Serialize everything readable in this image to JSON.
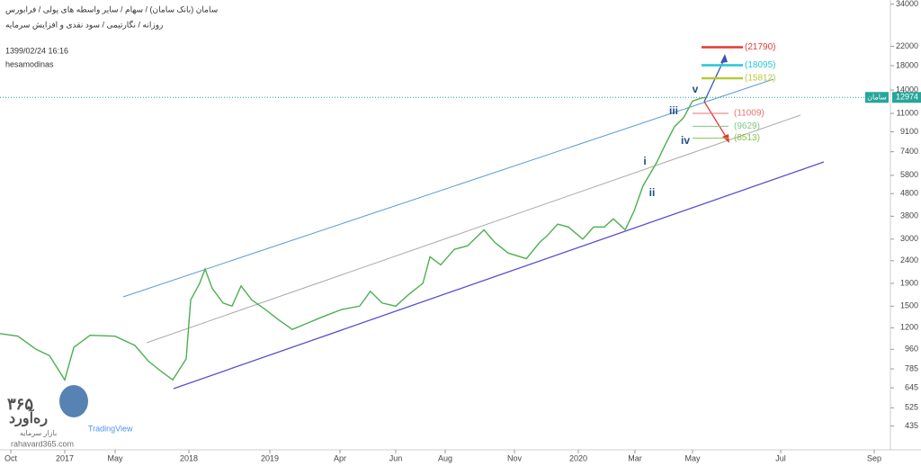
{
  "chart_data": {
    "type": "line",
    "title": "سامان (بانک سامان) / سهام / سایر واسطه های پولی / فرابورس",
    "subtitle": "روزانه / نگارتیمی / سود نقدی و افزایش سرمایه",
    "timestamp": "1399/02/24 16:16",
    "author": "hesamodinas",
    "watermark": {
      "digits": "۳۶۵",
      "brand": "ره‌آورد",
      "tagline": "بازار سرمایه",
      "site": "rahavard365.com",
      "platform": "TradingView"
    },
    "log_scale": true,
    "color": "#4caf50",
    "x": [
      2016.7,
      2016.783,
      2016.867,
      2016.929,
      2017.0,
      2017.06,
      2017.167,
      2017.333,
      2017.512,
      2017.634,
      2017.756,
      2017.854,
      2017.976,
      2018.022,
      2018.133,
      2018.2,
      2018.289,
      2018.422,
      2018.533,
      2018.644,
      2018.778,
      2018.944,
      2019.032,
      2019.08,
      2019.128,
      2019.192,
      2019.255,
      2019.309,
      2019.341,
      2019.376,
      2019.417,
      2019.462,
      2019.508,
      2019.532,
      2019.568,
      2019.616,
      2019.664,
      2019.723,
      2019.762,
      2019.81,
      2019.864,
      2019.899,
      2019.918,
      2019.946,
      2019.974,
      2020.013,
      2020.045,
      2020.077,
      2020.103,
      2020.138,
      2020.164,
      2020.19,
      2020.208,
      2020.229,
      2020.255,
      2020.281,
      2020.307,
      2020.333,
      2020.35,
      2020.359
    ],
    "values": [
      1130,
      1100,
      960,
      900,
      700,
      980,
      1110,
      1100,
      1000,
      850,
      760,
      700,
      870,
      1600,
      1900,
      2200,
      1800,
      1550,
      1500,
      1850,
      1600,
      1450,
      1300,
      1180,
      1250,
      1350,
      1450,
      1500,
      1750,
      1550,
      1500,
      1700,
      1900,
      2500,
      2300,
      2700,
      2800,
      3300,
      2900,
      2600,
      2450,
      2900,
      3100,
      3500,
      3400,
      3000,
      3400,
      3400,
      3700,
      3300,
      4000,
      5200,
      5800,
      6600,
      8000,
      9600,
      10500,
      12500,
      12900,
      12974
    ],
    "xlim": [
      2016.7,
      2020.696
    ],
    "xticks": [
      {
        "value": 2016.75,
        "label": "Oct"
      },
      2017,
      {
        "value": 2017.333,
        "label": "May"
      },
      2018,
      2019,
      {
        "value": 2019.25,
        "label": "Apr"
      },
      {
        "value": 2019.417,
        "label": "Jun"
      },
      {
        "value": 2019.583,
        "label": "Aug"
      },
      {
        "value": 2019.833,
        "label": "Nov"
      },
      2020,
      {
        "value": 2020.167,
        "label": "Mar"
      },
      {
        "value": 2020.333,
        "label": "May"
      },
      {
        "value": 2020.5,
        "label": "Jul"
      },
      {
        "value": 2020.667,
        "label": "Sep"
      }
    ],
    "ylim": [
      340,
      35500
    ],
    "yticks": [
      435,
      525,
      645,
      785,
      960,
      1200,
      1500,
      1900,
      2400,
      3000,
      3800,
      4800,
      5800,
      7400,
      9100,
      11000,
      14000,
      18000,
      22000,
      34000
    ],
    "last_price": {
      "value": 12974,
      "tag": "سامان"
    },
    "levels": [
      {
        "value": 21790,
        "label": "(21790)",
        "color": "#e53935"
      },
      {
        "value": 18095,
        "label": "(18095)",
        "color": "#26c6da"
      },
      {
        "value": 15812,
        "label": "(15812)",
        "color": "#b5c934"
      },
      {
        "value": 11009,
        "label": "(11009)",
        "color": "#e57373"
      },
      {
        "value": 9629,
        "label": "(9629)",
        "color": "#81c784"
      },
      {
        "value": 8513,
        "label": "(8513)",
        "color": "#8bc34a"
      }
    ],
    "wave_labels": [
      "v",
      "iii",
      "iv",
      "i",
      "ii"
    ]
  }
}
